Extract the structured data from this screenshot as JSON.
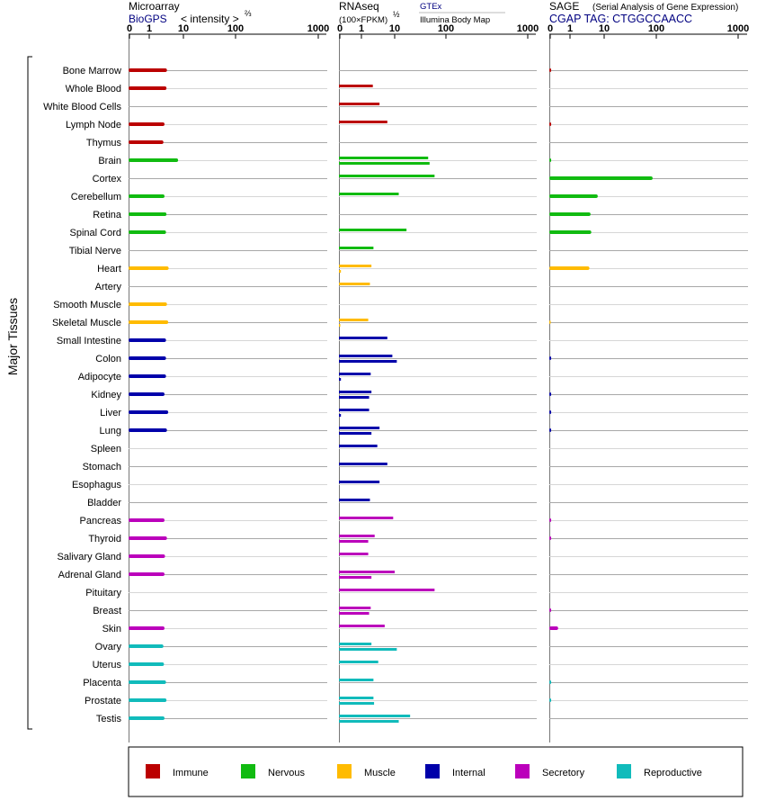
{
  "headers": {
    "microarray": {
      "title": "Microarray",
      "source": "BioGPS",
      "unit_pre": "< intensity >",
      "unit_sup": "⅔"
    },
    "rnaseq": {
      "title": "RNAseq",
      "unit": "(100×FPKM)",
      "unit_sup": "½",
      "legend_gtex": "GTEx",
      "legend_ibm": "Illumina Body Map"
    },
    "sage": {
      "title": "SAGE",
      "subtitle": "(Serial Analysis of Gene Expression)",
      "tag": "CGAP  TAG: CTGGCCAACC"
    }
  },
  "y_axis_label": "Major Tissues",
  "tick_labels": [
    "0",
    "1",
    "10",
    "100",
    "1000"
  ],
  "colors": {
    "Immune": "#bb0000",
    "Nervous": "#11bb11",
    "Muscle": "#ffbb00",
    "Internal": "#0000aa",
    "Secretory": "#bb00bb",
    "Reproductive": "#11bbbb"
  },
  "legend": [
    "Immune",
    "Nervous",
    "Muscle",
    "Internal",
    "Secretory",
    "Reproductive"
  ],
  "chart_data": {
    "type": "bar",
    "orientation": "horizontal",
    "x_scale": "log (0, 1, 10, 100, 1000)",
    "xlim": [
      0,
      1000
    ],
    "categories": [
      "Bone Marrow",
      "Whole Blood",
      "White Blood Cells",
      "Lymph Node",
      "Thymus",
      "Brain",
      "Cortex",
      "Cerebellum",
      "Retina",
      "Spinal Cord",
      "Tibial Nerve",
      "Heart",
      "Artery",
      "Smooth Muscle",
      "Skeletal Muscle",
      "Small Intestine",
      "Colon",
      "Adipocyte",
      "Kidney",
      "Liver",
      "Lung",
      "Spleen",
      "Stomach",
      "Esophagus",
      "Bladder",
      "Pancreas",
      "Thyroid",
      "Salivary Gland",
      "Adrenal Gland",
      "Pituitary",
      "Breast",
      "Skin",
      "Ovary",
      "Uterus",
      "Placenta",
      "Prostate",
      "Testis"
    ],
    "groups": [
      "Immune",
      "Immune",
      "Immune",
      "Immune",
      "Immune",
      "Nervous",
      "Nervous",
      "Nervous",
      "Nervous",
      "Nervous",
      "Nervous",
      "Muscle",
      "Muscle",
      "Muscle",
      "Muscle",
      "Internal",
      "Internal",
      "Internal",
      "Internal",
      "Internal",
      "Internal",
      "Internal",
      "Internal",
      "Internal",
      "Internal",
      "Secretory",
      "Secretory",
      "Secretory",
      "Secretory",
      "Secretory",
      "Secretory",
      "Secretory",
      "Reproductive",
      "Reproductive",
      "Reproductive",
      "Reproductive",
      "Reproductive"
    ],
    "series": [
      {
        "name": "Microarray (BioGPS)",
        "values": [
          3.3,
          3.2,
          null,
          2.8,
          2.6,
          7,
          null,
          2.8,
          3.2,
          3.1,
          null,
          3.7,
          null,
          3.3,
          3.6,
          3.1,
          3.1,
          3.1,
          2.8,
          3.6,
          3.3,
          null,
          null,
          null,
          null,
          2.8,
          3.3,
          2.9,
          2.8,
          null,
          null,
          2.8,
          2.6,
          2.7,
          3.1,
          3.2,
          2.8
        ]
      },
      {
        "name": "RNAseq GTEx",
        "values": [
          null,
          2.2,
          3.5,
          6.0,
          null,
          45,
          60,
          12,
          null,
          17,
          2.3,
          2.0,
          1.8,
          null,
          1.6,
          6.0,
          8.5,
          1.9,
          2.0,
          1.7,
          3.5,
          3.0,
          6.0,
          3.5,
          1.8,
          9.0,
          2.5,
          1.6,
          10,
          60,
          1.9,
          5.0,
          2.0,
          3.2,
          2.3,
          2.3,
          20
        ]
      },
      {
        "name": "RNAseq Illumina Body Map",
        "values": [
          null,
          null,
          null,
          null,
          null,
          48,
          null,
          null,
          null,
          null,
          null,
          0.05,
          null,
          null,
          0.02,
          null,
          11,
          0.05,
          1.7,
          0.05,
          2.0,
          null,
          null,
          null,
          null,
          null,
          1.6,
          null,
          2.0,
          null,
          1.7,
          null,
          11,
          null,
          null,
          2.4,
          12
        ]
      },
      {
        "name": "SAGE (CGAP)",
        "values": [
          0.05,
          null,
          null,
          0.05,
          null,
          0.05,
          85,
          6.5,
          4.0,
          4.2,
          null,
          3.7,
          null,
          null,
          0.02,
          null,
          0.05,
          null,
          0.05,
          0.05,
          0.05,
          null,
          null,
          null,
          null,
          0.05,
          0.05,
          null,
          null,
          null,
          0.05,
          0.4,
          null,
          null,
          0.05,
          0.05,
          null
        ]
      }
    ]
  }
}
